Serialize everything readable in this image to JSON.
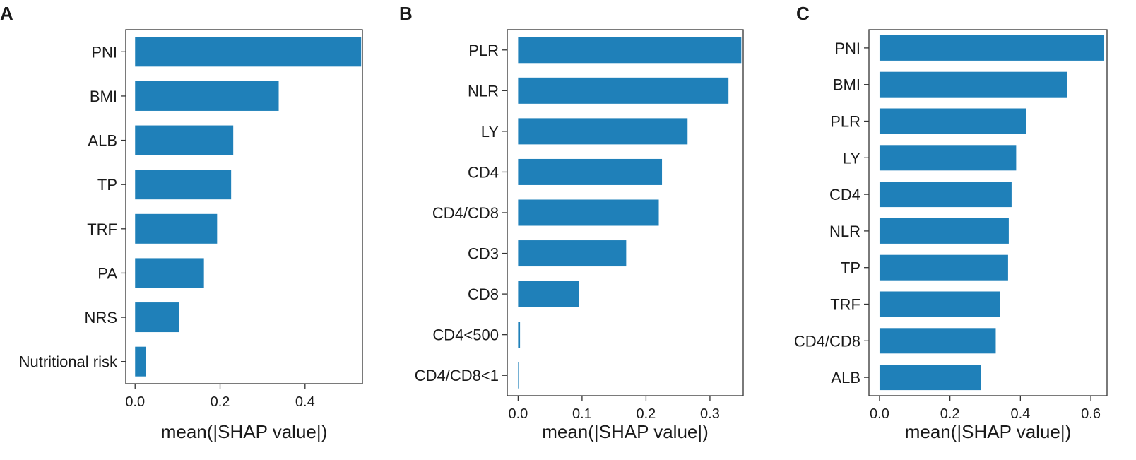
{
  "figure": {
    "bar_color": "#1f80b9",
    "axis_color": "#333333"
  },
  "chart_data": [
    {
      "panel_label": "A",
      "type": "bar",
      "orientation": "horizontal",
      "categories": [
        "PNI",
        "BMI",
        "ALB",
        "TP",
        "TRF",
        "PA",
        "NRS",
        "Nutritional risk"
      ],
      "values": [
        0.532,
        0.338,
        0.231,
        0.226,
        0.193,
        0.162,
        0.103,
        0.026
      ],
      "xlabel": "mean(|SHAP value|)",
      "xlim": [
        -0.022,
        0.535
      ],
      "xticks": [
        0.0,
        0.2,
        0.4
      ],
      "xtick_labels": [
        "0.0",
        "0.2",
        "0.4"
      ]
    },
    {
      "panel_label": "B",
      "type": "bar",
      "orientation": "horizontal",
      "categories": [
        "PLR",
        "NLR",
        "LY",
        "CD4",
        "CD4/CD8",
        "CD3",
        "CD8",
        "CD4<500",
        "CD4/CD8<1"
      ],
      "values": [
        0.349,
        0.329,
        0.265,
        0.225,
        0.22,
        0.169,
        0.095,
        0.003,
        0.001
      ],
      "xlabel": "mean(|SHAP value|)",
      "xlim": [
        -0.017,
        0.352
      ],
      "xticks": [
        0.0,
        0.1,
        0.2,
        0.3
      ],
      "xtick_labels": [
        "0.0",
        "0.1",
        "0.2",
        "0.3"
      ]
    },
    {
      "panel_label": "C",
      "type": "bar",
      "orientation": "horizontal",
      "categories": [
        "PNI",
        "BMI",
        "PLR",
        "LY",
        "CD4",
        "NLR",
        "TP",
        "TRF",
        "CD4/CD8",
        "ALB"
      ],
      "values": [
        0.638,
        0.532,
        0.416,
        0.388,
        0.375,
        0.367,
        0.365,
        0.343,
        0.33,
        0.288
      ],
      "xlabel": "mean(|SHAP value|)",
      "xlim": [
        -0.03,
        0.646
      ],
      "xticks": [
        0.0,
        0.2,
        0.4,
        0.6
      ],
      "xtick_labels": [
        "0.0",
        "0.2",
        "0.4",
        "0.6"
      ]
    }
  ]
}
